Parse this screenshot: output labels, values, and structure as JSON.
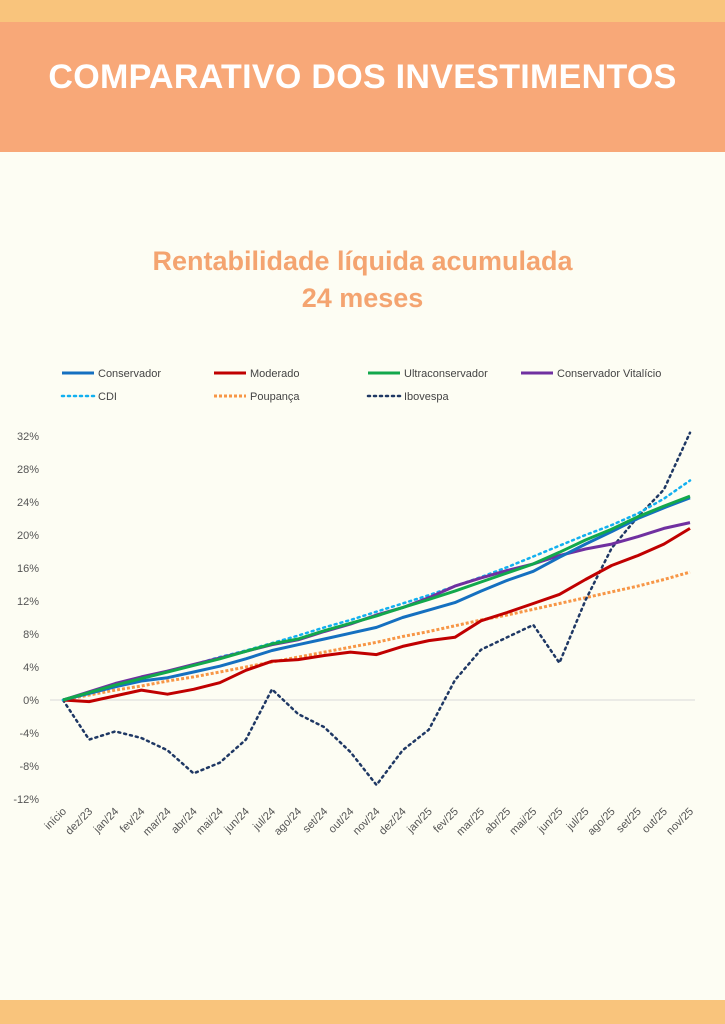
{
  "header": {
    "title": "COMPARATIVO DOS INVESTIMENTOS"
  },
  "chart_data": {
    "type": "line",
    "title": "Rentabilidade líquida acumulada",
    "subtitle": "24 meses",
    "legend_position": "top",
    "grid": false,
    "ylim": [
      -12,
      32
    ],
    "yticks": [
      "32%",
      "28%",
      "24%",
      "20%",
      "16%",
      "12%",
      "8%",
      "4%",
      "0%",
      "-4%",
      "-8%",
      "-12%"
    ],
    "categories": [
      "início",
      "dez/23",
      "jan/24",
      "fev/24",
      "mar/24",
      "abr/24",
      "mai/24",
      "jun/24",
      "jul/24",
      "ago/24",
      "set/24",
      "out/24",
      "nov/24",
      "dez/24",
      "jan/25",
      "fev/25",
      "mar/25",
      "abr/25",
      "mai/25",
      "jun/25",
      "jul/25",
      "ago/25",
      "set/25",
      "out/25",
      "nov/25"
    ],
    "series": [
      {
        "name": "Conservador",
        "color": "#1570c0",
        "style": "solid",
        "values": [
          0,
          0.8,
          1.6,
          2.3,
          2.7,
          3.4,
          4.1,
          5.0,
          6.0,
          6.7,
          7.4,
          8.1,
          8.8,
          10.0,
          10.9,
          11.8,
          13.2,
          14.5,
          15.6,
          17.3,
          18.9,
          20.4,
          22.0,
          23.3,
          24.5
        ]
      },
      {
        "name": "Moderado",
        "color": "#c00000",
        "style": "solid",
        "values": [
          0,
          -0.2,
          0.5,
          1.2,
          0.7,
          1.3,
          2.1,
          3.6,
          4.7,
          4.9,
          5.4,
          5.8,
          5.5,
          6.5,
          7.2,
          7.6,
          9.6,
          10.6,
          11.7,
          12.8,
          14.6,
          16.3,
          17.5,
          18.9,
          20.8
        ]
      },
      {
        "name": "Ultraconservador",
        "color": "#12a84c",
        "style": "solid",
        "values": [
          0,
          0.9,
          1.8,
          2.6,
          3.4,
          4.2,
          5.0,
          5.9,
          6.8,
          7.4,
          8.4,
          9.3,
          10.2,
          11.2,
          12.2,
          13.2,
          14.3,
          15.4,
          16.5,
          17.9,
          19.4,
          20.7,
          22.2,
          23.5,
          24.7
        ]
      },
      {
        "name": "Conservador Vitalício",
        "color": "#7030a0",
        "style": "solid",
        "values": [
          0,
          1.0,
          2.0,
          2.8,
          3.5,
          4.3,
          5.1,
          5.9,
          6.7,
          7.3,
          8.3,
          9.2,
          10.3,
          11.2,
          12.4,
          13.8,
          14.8,
          15.7,
          16.5,
          17.5,
          18.3,
          18.9,
          19.8,
          20.8,
          21.5
        ]
      },
      {
        "name": "CDI",
        "color": "#12b0f0",
        "style": "dotted",
        "values": [
          0,
          0.9,
          1.8,
          2.6,
          3.5,
          4.3,
          5.2,
          6.0,
          6.9,
          7.8,
          8.8,
          9.7,
          10.7,
          11.7,
          12.7,
          13.8,
          14.9,
          16.1,
          17.4,
          18.7,
          20.0,
          21.2,
          22.6,
          24.4,
          26.6
        ]
      },
      {
        "name": "Poupança",
        "color": "#f79646",
        "style": "dotted",
        "values": [
          0,
          0.6,
          1.2,
          1.7,
          2.3,
          2.8,
          3.4,
          4.0,
          4.6,
          5.2,
          5.8,
          6.4,
          7.0,
          7.7,
          8.3,
          9.0,
          9.7,
          10.3,
          11.0,
          11.7,
          12.4,
          13.1,
          13.8,
          14.6,
          15.5
        ]
      },
      {
        "name": "Ibovespa",
        "color": "#1f3864",
        "style": "dotted",
        "values": [
          0,
          -4.8,
          -3.8,
          -4.6,
          -6.1,
          -8.9,
          -7.6,
          -4.8,
          1.3,
          -1.7,
          -3.3,
          -6.3,
          -10.3,
          -6.1,
          -3.6,
          2.4,
          6.1,
          7.6,
          9.1,
          4.5,
          12.1,
          18.4,
          22.2,
          25.5,
          32.4
        ]
      }
    ]
  }
}
